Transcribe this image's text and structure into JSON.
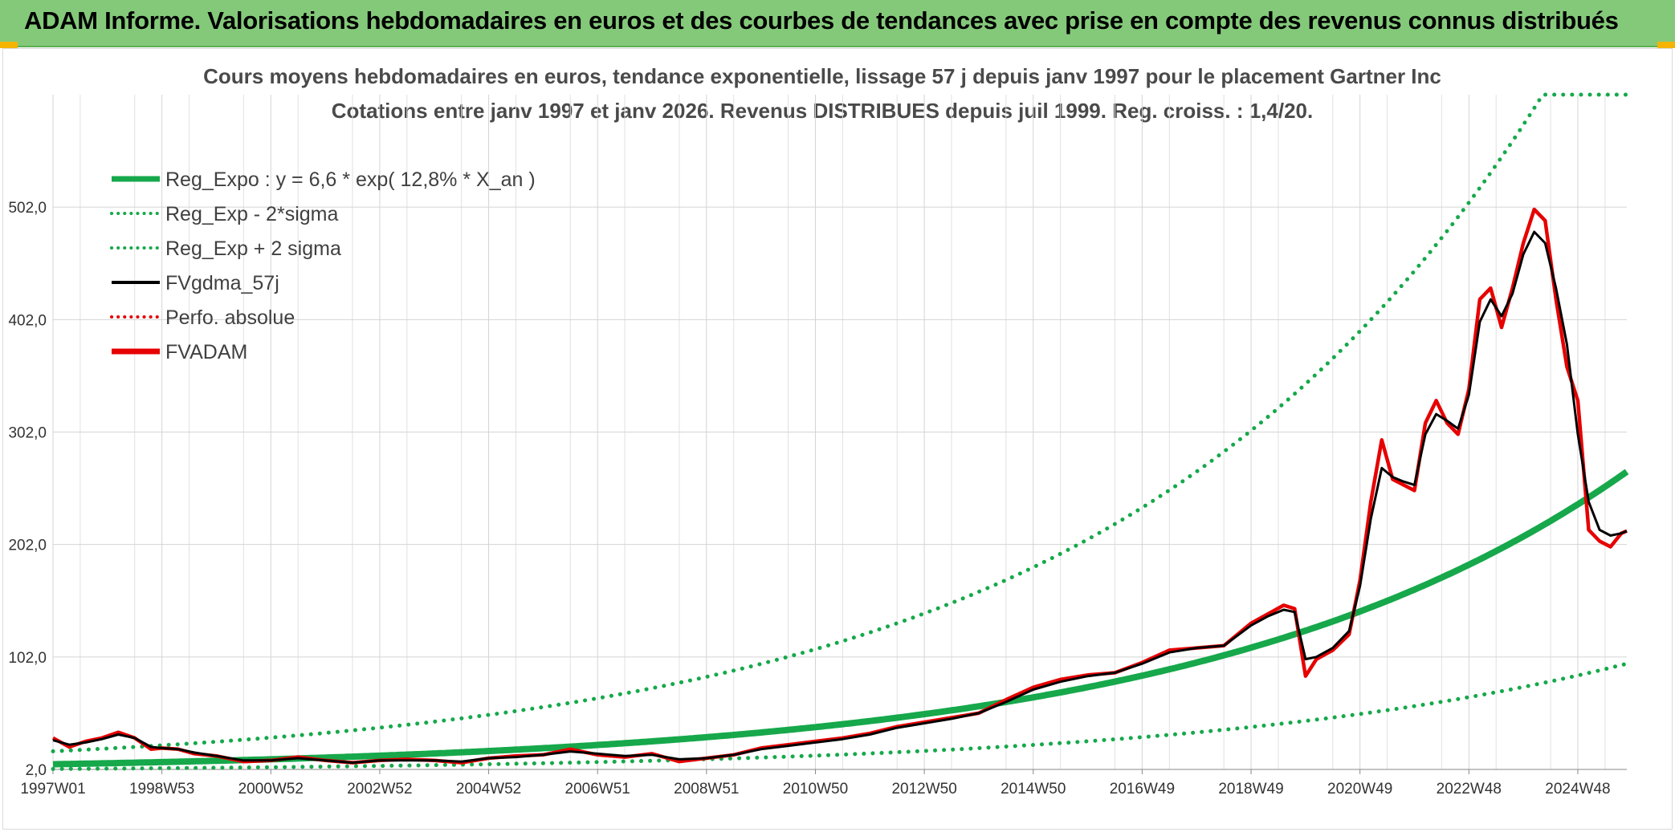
{
  "header": {
    "title": "ADAM Informe. Valorisations hebdomadaires en euros et des courbes de tendances avec prise en compte des revenus connus distribués"
  },
  "chart_data": {
    "type": "line",
    "title": "Cours moyens hebdomadaires en euros, tendance exponentielle, lissage 57 j depuis janv 1997 pour le placement Gartner Inc",
    "subtitle": "Cotations entre janv 1997 et janv 2026. Revenus DISTRIBUES depuis juil 1999. Reg. croiss. : 1,4/20.",
    "ylim": [
      2,
      602
    ],
    "y_ticks": [
      "2,0",
      "102,0",
      "202,0",
      "302,0",
      "402,0",
      "502,0"
    ],
    "y_tick_values": [
      2,
      102,
      202,
      302,
      402,
      502
    ],
    "x_range": [
      1997.0,
      2025.9
    ],
    "x_ticks": [
      "1997W01",
      "1998W53",
      "2000W52",
      "2002W52",
      "2004W52",
      "2006W51",
      "2008W51",
      "2010W50",
      "2012W50",
      "2014W50",
      "2016W49",
      "2018W49",
      "2020W49",
      "2022W48",
      "2024W48"
    ],
    "x_tick_values": [
      1997.0,
      1999.0,
      2001.0,
      2003.0,
      2005.0,
      2007.0,
      2009.0,
      2011.0,
      2013.0,
      2015.0,
      2017.0,
      2019.0,
      2021.0,
      2023.0,
      2025.0
    ],
    "legend": [
      {
        "name": "Reg_Expo : y = 6,6 * exp( 12,8% *  X_an )",
        "color": "#16a84b",
        "style": "solid-thick"
      },
      {
        "name": "Reg_Exp - 2*sigma",
        "color": "#16a84b",
        "style": "dotted"
      },
      {
        "name": "Reg_Exp + 2 sigma",
        "color": "#16a84b",
        "style": "dotted"
      },
      {
        "name": "FVgdma_57j",
        "color": "#000000",
        "style": "solid"
      },
      {
        "name": "Perfo. absolue",
        "color": "#e60000",
        "style": "dotted"
      },
      {
        "name": "FVADAM",
        "color": "#e60000",
        "style": "solid-thick"
      }
    ],
    "legend_position": "top-left",
    "regression": {
      "a": 6.6,
      "rate": 0.128,
      "lower_factor": 0.36,
      "upper_factor": 2.75,
      "cap": 602
    },
    "series": [
      {
        "name": "FVADAM",
        "x": [
          1997.0,
          1997.3,
          1997.6,
          1997.9,
          1998.2,
          1998.5,
          1998.8,
          1999.0,
          1999.3,
          1999.6,
          2000.0,
          2000.5,
          2001.0,
          2001.5,
          2002.0,
          2002.5,
          2003.0,
          2003.5,
          2004.0,
          2004.5,
          2005.0,
          2005.5,
          2006.0,
          2006.5,
          2007.0,
          2007.5,
          2008.0,
          2008.5,
          2009.0,
          2009.5,
          2010.0,
          2010.5,
          2011.0,
          2011.5,
          2012.0,
          2012.5,
          2013.0,
          2013.5,
          2014.0,
          2014.5,
          2015.0,
          2015.5,
          2016.0,
          2016.5,
          2017.0,
          2017.5,
          2018.0,
          2018.5,
          2019.0,
          2019.3,
          2019.6,
          2019.8,
          2020.0,
          2020.2,
          2020.5,
          2020.8,
          2021.0,
          2021.2,
          2021.4,
          2021.6,
          2021.8,
          2022.0,
          2022.2,
          2022.4,
          2022.6,
          2022.8,
          2023.0,
          2023.2,
          2023.4,
          2023.6,
          2023.8,
          2024.0,
          2024.2,
          2024.4,
          2024.6,
          2024.8,
          2025.0,
          2025.2,
          2025.4,
          2025.6,
          2025.8,
          2025.9
        ],
        "values": [
          30,
          22,
          27,
          30,
          35,
          30,
          20,
          21,
          20,
          16,
          14,
          9,
          10,
          13,
          10,
          8,
          10,
          11,
          10,
          8,
          12,
          14,
          15,
          20,
          15,
          13,
          16,
          9,
          12,
          15,
          21,
          24,
          27,
          30,
          34,
          40,
          44,
          48,
          52,
          64,
          75,
          82,
          86,
          88,
          97,
          108,
          110,
          112,
          132,
          140,
          148,
          145,
          85,
          100,
          108,
          122,
          170,
          240,
          295,
          260,
          255,
          250,
          310,
          330,
          310,
          300,
          340,
          420,
          430,
          395,
          430,
          470,
          500,
          490,
          420,
          360,
          330,
          215,
          205,
          200,
          212,
          214
        ]
      },
      {
        "name": "FVgdma_57j",
        "x": [
          1997.0,
          1997.3,
          1997.6,
          1997.9,
          1998.2,
          1998.5,
          1998.8,
          1999.0,
          1999.3,
          1999.6,
          2000.0,
          2000.5,
          2001.0,
          2001.5,
          2002.0,
          2002.5,
          2003.0,
          2003.5,
          2004.0,
          2004.5,
          2005.0,
          2005.5,
          2006.0,
          2006.5,
          2007.0,
          2007.5,
          2008.0,
          2008.5,
          2009.0,
          2009.5,
          2010.0,
          2010.5,
          2011.0,
          2011.5,
          2012.0,
          2012.5,
          2013.0,
          2013.5,
          2014.0,
          2014.5,
          2015.0,
          2015.5,
          2016.0,
          2016.5,
          2017.0,
          2017.5,
          2018.0,
          2018.5,
          2019.0,
          2019.3,
          2019.6,
          2019.8,
          2020.0,
          2020.2,
          2020.5,
          2020.8,
          2021.0,
          2021.2,
          2021.4,
          2021.6,
          2021.8,
          2022.0,
          2022.2,
          2022.4,
          2022.6,
          2022.8,
          2023.0,
          2023.2,
          2023.4,
          2023.6,
          2023.8,
          2024.0,
          2024.2,
          2024.4,
          2024.6,
          2024.8,
          2025.0,
          2025.2,
          2025.4,
          2025.6,
          2025.8,
          2025.9
        ],
        "values": [
          28,
          24,
          26,
          29,
          33,
          30,
          22,
          21,
          20,
          17,
          14,
          10,
          10,
          12,
          10,
          8,
          10,
          10,
          10,
          9,
          12,
          13,
          15,
          18,
          16,
          14,
          15,
          11,
          12,
          15,
          20,
          23,
          26,
          29,
          33,
          39,
          43,
          47,
          52,
          62,
          73,
          80,
          85,
          88,
          96,
          106,
          110,
          112,
          130,
          138,
          144,
          142,
          100,
          102,
          110,
          125,
          165,
          225,
          270,
          262,
          258,
          255,
          300,
          318,
          312,
          305,
          335,
          400,
          420,
          405,
          425,
          460,
          480,
          470,
          430,
          380,
          300,
          240,
          215,
          210,
          212,
          214
        ]
      }
    ]
  }
}
